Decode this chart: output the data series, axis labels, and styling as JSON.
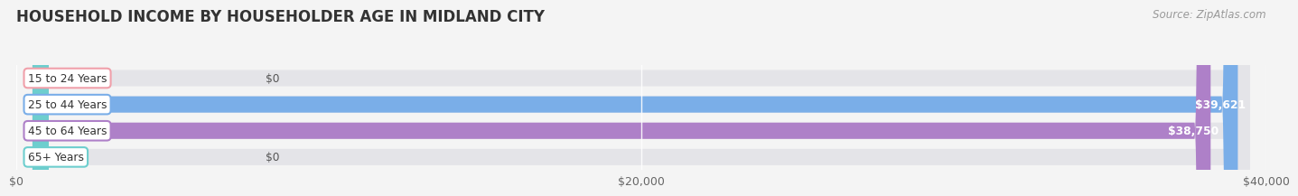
{
  "title": "HOUSEHOLD INCOME BY HOUSEHOLDER AGE IN MIDLAND CITY",
  "source": "Source: ZipAtlas.com",
  "categories": [
    "15 to 24 Years",
    "25 to 44 Years",
    "45 to 64 Years",
    "65+ Years"
  ],
  "values": [
    0,
    39621,
    38750,
    0
  ],
  "bar_colors": [
    "#f0a0aa",
    "#7aaee8",
    "#ae80c8",
    "#6dcece"
  ],
  "max_value": 40000,
  "xticks": [
    0,
    20000,
    40000
  ],
  "xticklabels": [
    "$0",
    "$20,000",
    "$40,000"
  ],
  "bar_labels": [
    "$0",
    "$39,621",
    "$38,750",
    "$0"
  ],
  "background_color": "#f4f4f4",
  "bar_bg_color": "#e4e4e8",
  "title_fontsize": 12,
  "source_fontsize": 8.5,
  "tick_fontsize": 9
}
